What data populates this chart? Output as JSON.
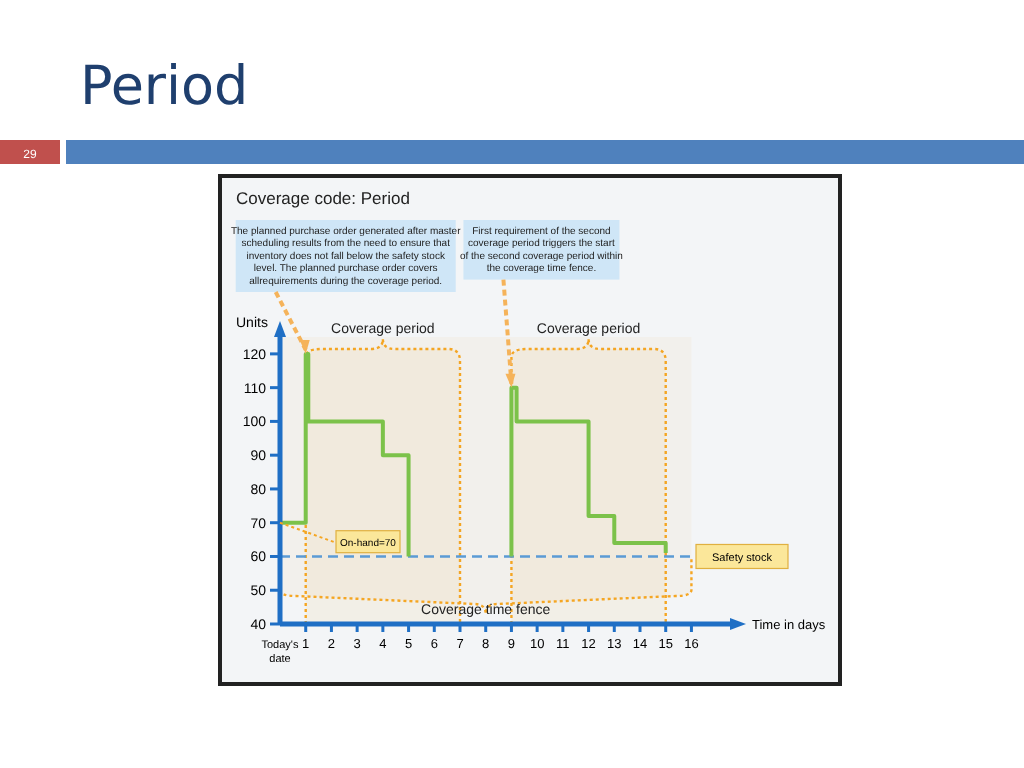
{
  "chart_data": {
    "type": "line",
    "title": "Period",
    "subtitle": "Coverage code: Period",
    "xlabel": "Time in days",
    "ylabel": "Units",
    "x": [
      0,
      1,
      1,
      1.1,
      1.1,
      4,
      4,
      5,
      5,
      7,
      9,
      9,
      9.2,
      9.2,
      12,
      12,
      13,
      13,
      15,
      15
    ],
    "series": [
      {
        "color": "#7cc24a",
        "values": [
          70,
          70,
          120,
          120,
          100,
          100,
          90,
          90,
          60,
          null,
          60,
          110,
          110,
          100,
          100,
          72,
          72,
          64,
          64,
          61
        ]
      }
    ],
    "xlim": [
      0,
      17.5
    ],
    "xticks": [
      {
        "value": 0,
        "label": "Today's date"
      },
      1,
      2,
      3,
      4,
      5,
      6,
      7,
      8,
      9,
      10,
      11,
      12,
      13,
      14,
      15,
      16
    ],
    "ylim": [
      40,
      125
    ],
    "yticks": [
      40,
      50,
      60,
      70,
      80,
      90,
      100,
      110,
      120
    ],
    "grid": false,
    "marker": "none",
    "line_style": "solid",
    "ref_lines": [
      {
        "axis": "y",
        "value": 60,
        "label": "Safety stock",
        "color": "#5b9bd5",
        "line_style": "dashed"
      }
    ],
    "bands": [
      {
        "axis": "x",
        "from": 1,
        "to": 7,
        "label": "Coverage period",
        "color": "#f5a623"
      },
      {
        "axis": "x",
        "from": 9,
        "to": 15,
        "label": "Coverage period",
        "color": "#f5a623"
      },
      {
        "axis": "x",
        "from": 0,
        "to": 16,
        "label": "Coverage time fence",
        "color": "#f5a623"
      }
    ],
    "annotations": [
      "29",
      {
        "text": "The planned purchase order generated after master scheduling results from the need to ensure that inventory does not fall below the safety stock level. The planned purchase order covers allrequirements during the coverage period.",
        "x": 1,
        "y": 120
      },
      {
        "text": "First requirement of the second coverage period triggers the start of the second coverage period within the coverage time fence.",
        "x": 9,
        "y": 110
      },
      {
        "text": "On-hand=70",
        "x": 0,
        "y": 70
      }
    ]
  }
}
